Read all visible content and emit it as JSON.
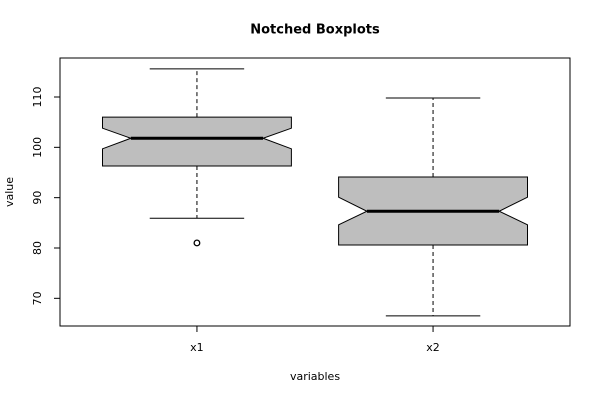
{
  "chart_data": {
    "type": "boxplot",
    "title": "Notched Boxplots",
    "xlabel": "variables",
    "ylabel": "value",
    "categories": [
      "x1",
      "x2"
    ],
    "color": "#bebebe",
    "boxes": [
      {
        "whisker_low": 85.9,
        "q1": 96.3,
        "median": 101.8,
        "q3": 106.0,
        "whisker_high": 115.6,
        "notch_low": 99.7,
        "notch_high": 103.8,
        "outliers": [
          81.0
        ]
      },
      {
        "whisker_low": 66.5,
        "q1": 80.6,
        "median": 87.3,
        "q3": 94.1,
        "whisker_high": 109.8,
        "notch_low": 84.6,
        "notch_high": 90.1,
        "outliers": []
      }
    ],
    "ylim": [
      64.5,
      117.75
    ],
    "yticks": [
      70,
      80,
      90,
      100,
      110
    ]
  }
}
